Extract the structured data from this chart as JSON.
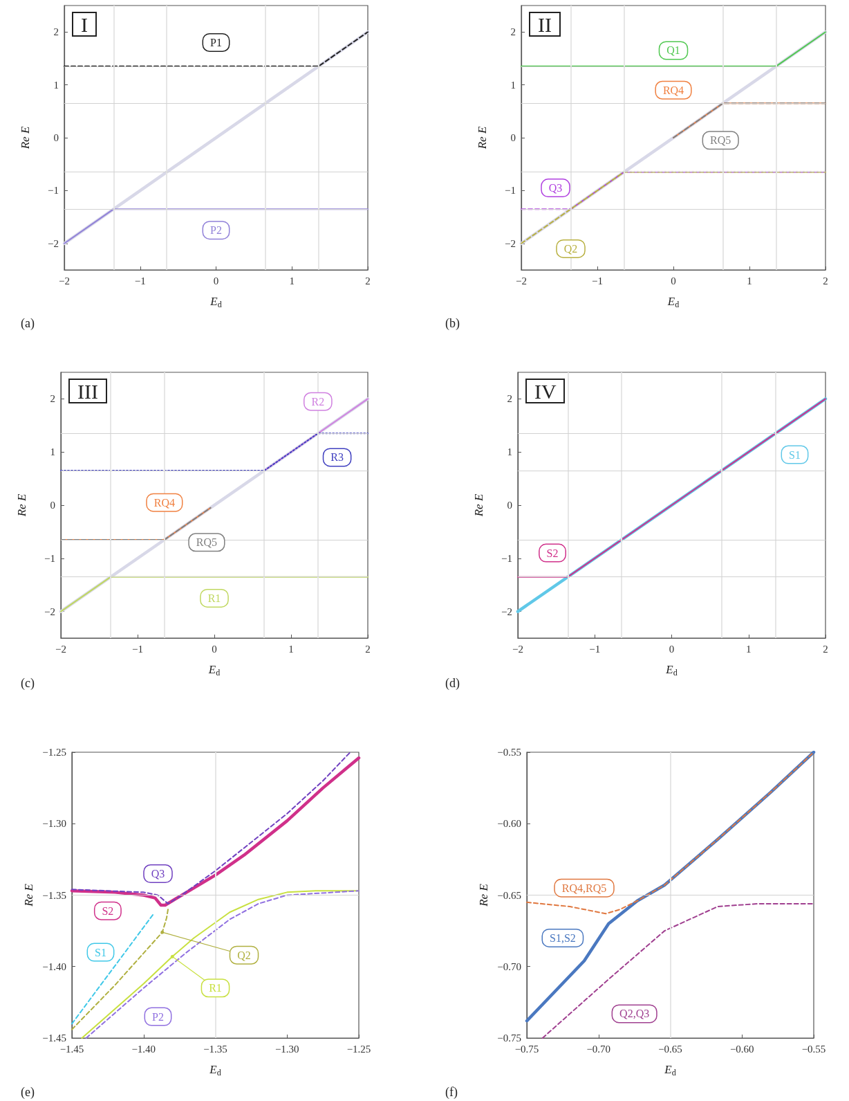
{
  "chart_data": [
    {
      "type": "line",
      "title": "I",
      "xlabel": "E$_{d}$",
      "ylabel": "Re E",
      "annotations": [
        "(a)"
      ],
      "marker": "none",
      "xlim": [
        -2,
        2
      ],
      "ylim": [
        -2.5,
        2.5
      ],
      "xticks": [
        {
          "value": -2,
          "label": "−2"
        },
        {
          "value": -1,
          "label": "−1"
        },
        0,
        1,
        2
      ],
      "yticks": [
        {
          "value": -2,
          "label": "−2"
        },
        {
          "value": -1,
          "label": "−1"
        },
        0,
        1,
        2
      ],
      "ref_lines": [
        {
          "axis": "x",
          "value": -1.35,
          "color": "#e6e6e6"
        },
        {
          "axis": "x",
          "value": -0.65,
          "color": "#e6e6e6"
        },
        {
          "axis": "x",
          "value": 0.65,
          "color": "#e6e6e6"
        },
        {
          "axis": "x",
          "value": 1.35,
          "color": "#e6e6e6"
        },
        {
          "axis": "y",
          "value": -1.35,
          "color": "#d2d2d2"
        },
        {
          "axis": "y",
          "value": -0.65,
          "color": "#d2d2d2"
        },
        {
          "axis": "y",
          "value": 0.65,
          "color": "#d2d2d2"
        },
        {
          "axis": "y",
          "value": 1.35,
          "color": "#d2d2d2"
        }
      ],
      "series": [
        {
          "color": "#d8d8e8",
          "x": [
            -2,
            2
          ],
          "values": [
            -2,
            2
          ]
        },
        {
          "name": "P1",
          "color": "#222222",
          "line_style": "dashed",
          "x": [
            -2,
            1.35,
            2
          ],
          "values": [
            1.35,
            1.35,
            2
          ]
        },
        {
          "name": "P2",
          "color": "#9080d8",
          "x": [
            -2,
            -1.35,
            2
          ],
          "values": [
            -2,
            -1.35,
            -1.35
          ]
        }
      ]
    },
    {
      "type": "line",
      "title": "II",
      "xlabel": "E$_{d}$",
      "ylabel": "Re E",
      "annotations": [
        "(b)"
      ],
      "marker": "none",
      "xlim": [
        -2,
        2
      ],
      "ylim": [
        -2.5,
        2.5
      ],
      "xticks": [
        {
          "value": -2,
          "label": "−2"
        },
        {
          "value": -1,
          "label": "−1"
        },
        0,
        1,
        2
      ],
      "yticks": [
        {
          "value": -2,
          "label": "−2"
        },
        {
          "value": -1,
          "label": "−1"
        },
        0,
        1,
        2
      ],
      "ref_lines": [
        {
          "axis": "x",
          "value": -1.35,
          "color": "#e6e6e6"
        },
        {
          "axis": "x",
          "value": -0.65,
          "color": "#e6e6e6"
        },
        {
          "axis": "x",
          "value": 0.65,
          "color": "#e6e6e6"
        },
        {
          "axis": "x",
          "value": 1.35,
          "color": "#e6e6e6"
        },
        {
          "axis": "y",
          "value": -1.35,
          "color": "#d2d2d2"
        },
        {
          "axis": "y",
          "value": -0.65,
          "color": "#d2d2d2"
        },
        {
          "axis": "y",
          "value": 0.65,
          "color": "#d2d2d2"
        },
        {
          "axis": "y",
          "value": 1.35,
          "color": "#d2d2d2"
        }
      ],
      "series": [
        {
          "color": "#d8d8e8",
          "x": [
            -2,
            2
          ],
          "values": [
            -2,
            2
          ]
        },
        {
          "name": "Q1",
          "color": "#50c850",
          "x": [
            -2,
            1.35,
            2
          ],
          "values": [
            1.35,
            1.35,
            2
          ]
        },
        {
          "name": "RQ4",
          "color": "#f08040",
          "x": [
            0,
            0.65,
            2
          ],
          "values": [
            0,
            0.65,
            0.65
          ]
        },
        {
          "name": "RQ5",
          "color": "#808080",
          "line_style": "dashed",
          "x": [
            0,
            0.65,
            2
          ],
          "values": [
            0,
            0.65,
            0.65
          ]
        },
        {
          "name": "Q3",
          "color": "#b040e0",
          "line_style": "dashed",
          "x": [
            -2,
            -1.35,
            -0.65,
            2
          ],
          "values": [
            -1.35,
            -1.35,
            -0.65,
            -0.65
          ]
        },
        {
          "name": "Q2",
          "color": "#b8b040",
          "line_style": "dashed",
          "x": [
            -2,
            -0.65,
            2
          ],
          "values": [
            -2,
            -0.65,
            -0.65
          ]
        }
      ]
    },
    {
      "type": "line",
      "title": "III",
      "xlabel": "E$_{d}$",
      "ylabel": "Re E",
      "annotations": [
        "(c)"
      ],
      "marker": "none",
      "xlim": [
        -2,
        2
      ],
      "ylim": [
        -2.5,
        2.5
      ],
      "xticks": [
        {
          "value": -2,
          "label": "−2"
        },
        {
          "value": -1,
          "label": "−1"
        },
        0,
        1,
        2
      ],
      "yticks": [
        {
          "value": -2,
          "label": "−2"
        },
        {
          "value": -1,
          "label": "−1"
        },
        0,
        1,
        2
      ],
      "ref_lines": [
        {
          "axis": "x",
          "value": -1.35,
          "color": "#e6e6e6"
        },
        {
          "axis": "x",
          "value": -0.65,
          "color": "#e6e6e6"
        },
        {
          "axis": "x",
          "value": 0.65,
          "color": "#e6e6e6"
        },
        {
          "axis": "x",
          "value": 1.35,
          "color": "#e6e6e6"
        },
        {
          "axis": "y",
          "value": -1.35,
          "color": "#d2d2d2"
        },
        {
          "axis": "y",
          "value": -0.65,
          "color": "#d2d2d2"
        },
        {
          "axis": "y",
          "value": 0.65,
          "color": "#d2d2d2"
        },
        {
          "axis": "y",
          "value": 1.35,
          "color": "#d2d2d2"
        }
      ],
      "series": [
        {
          "color": "#d8d8e8",
          "x": [
            -2,
            2
          ],
          "values": [
            -2,
            2
          ]
        },
        {
          "name": "R2",
          "color": "#d080e0",
          "x": [
            0.65,
            2
          ],
          "values": [
            0.65,
            2
          ]
        },
        {
          "name": "R3",
          "color": "#4040c0",
          "line_style": "dotted",
          "x": [
            -2,
            0.65,
            1.35,
            2
          ],
          "values": [
            0.65,
            0.65,
            1.35,
            1.35
          ]
        },
        {
          "name": "RQ4",
          "color": "#f08040",
          "x": [
            -2,
            -0.65,
            -0.05
          ],
          "values": [
            -0.65,
            -0.65,
            -0.05
          ]
        },
        {
          "name": "RQ5",
          "color": "#808080",
          "line_style": "dashed",
          "x": [
            -2,
            -0.65,
            -0.05
          ],
          "values": [
            -0.65,
            -0.65,
            -0.05
          ]
        },
        {
          "name": "R1",
          "color": "#c0d860",
          "x": [
            -2,
            -1.35,
            2
          ],
          "values": [
            -2,
            -1.35,
            -1.35
          ]
        }
      ]
    },
    {
      "type": "line",
      "title": "IV",
      "xlabel": "E$_{d}$",
      "ylabel": "Re E",
      "annotations": [
        "(d)"
      ],
      "marker": "none",
      "xlim": [
        -2,
        2
      ],
      "ylim": [
        -2.5,
        2.5
      ],
      "xticks": [
        {
          "value": -2,
          "label": "−2"
        },
        {
          "value": -1,
          "label": "−1"
        },
        0,
        1,
        2
      ],
      "yticks": [
        {
          "value": -2,
          "label": "−2"
        },
        {
          "value": -1,
          "label": "−1"
        },
        0,
        1,
        2
      ],
      "ref_lines": [
        {
          "axis": "x",
          "value": -1.35,
          "color": "#e6e6e6"
        },
        {
          "axis": "x",
          "value": -0.65,
          "color": "#e6e6e6"
        },
        {
          "axis": "x",
          "value": 0.65,
          "color": "#e6e6e6"
        },
        {
          "axis": "x",
          "value": 1.35,
          "color": "#e6e6e6"
        },
        {
          "axis": "y",
          "value": -1.35,
          "color": "#d2d2d2"
        },
        {
          "axis": "y",
          "value": -0.65,
          "color": "#d2d2d2"
        },
        {
          "axis": "y",
          "value": 0.65,
          "color": "#d2d2d2"
        },
        {
          "axis": "y",
          "value": 1.35,
          "color": "#d2d2d2"
        }
      ],
      "series": [
        {
          "name": "S1",
          "color": "#60c8e8",
          "x": [
            -2,
            2
          ],
          "values": [
            -2,
            2
          ]
        },
        {
          "name": "S2",
          "color": "#d0308a",
          "x": [
            -2,
            -1.35,
            2
          ],
          "values": [
            -1.35,
            -1.35,
            2
          ]
        }
      ]
    },
    {
      "type": "line",
      "xlabel": "E$_{d}$",
      "ylabel": "Re E",
      "annotations": [
        "(e)"
      ],
      "marker": "none",
      "xlim": [
        -1.45,
        -1.25
      ],
      "ylim": [
        -1.45,
        -1.25
      ],
      "xticks": [
        {
          "value": -1.45,
          "label": "−1.45"
        },
        {
          "value": -1.4,
          "label": "−1.40"
        },
        {
          "value": -1.35,
          "label": "−1.35"
        },
        {
          "value": -1.3,
          "label": "−1.30"
        },
        {
          "value": -1.25,
          "label": "−1.25"
        }
      ],
      "yticks": [
        {
          "value": -1.45,
          "label": "−1.45"
        },
        {
          "value": -1.4,
          "label": "−1.40"
        },
        {
          "value": -1.35,
          "label": "−1.35"
        },
        {
          "value": -1.3,
          "label": "−1.30"
        },
        {
          "value": -1.25,
          "label": "−1.25"
        }
      ],
      "ref_lines": [
        {
          "axis": "x",
          "value": -1.35,
          "color": "#e6e6e6"
        },
        {
          "axis": "y",
          "value": -1.35,
          "color": "#d2d2d2"
        }
      ],
      "series": [
        {
          "name": "S2",
          "color": "#d0308a",
          "x": [
            -1.45,
            -1.42,
            -1.4,
            -1.392,
            -1.388,
            -1.385,
            -1.38,
            -1.37,
            -1.35,
            -1.33,
            -1.3,
            -1.275,
            -1.25
          ],
          "values": [
            -1.347,
            -1.348,
            -1.35,
            -1.352,
            -1.357,
            -1.357,
            -1.354,
            -1.348,
            -1.336,
            -1.322,
            -1.298,
            -1.275,
            -1.254
          ]
        },
        {
          "name": "Q3",
          "color": "#7040c0",
          "line_style": "dashed",
          "x": [
            -1.45,
            -1.4,
            -1.39,
            -1.383,
            -1.375,
            -1.35,
            -1.3,
            -1.275,
            -1.256
          ],
          "values": [
            -1.346,
            -1.348,
            -1.35,
            -1.356,
            -1.351,
            -1.333,
            -1.293,
            -1.27,
            -1.25
          ]
        },
        {
          "name": "S1",
          "color": "#40c8e8",
          "line_style": "dashed",
          "x": [
            -1.45,
            -1.393
          ],
          "values": [
            -1.44,
            -1.363
          ]
        },
        {
          "name": "Q2",
          "color": "#b0b040",
          "line_style": "dashed",
          "x": [
            -1.45,
            -1.42,
            -1.387,
            -1.384,
            -1.383
          ],
          "values": [
            -1.444,
            -1.413,
            -1.376,
            -1.366,
            -1.36
          ]
        },
        {
          "name": "R1",
          "color": "#c8e040",
          "x": [
            -1.443,
            -1.4,
            -1.38,
            -1.365,
            -1.34,
            -1.32,
            -1.3,
            -1.28,
            -1.25
          ],
          "values": [
            -1.45,
            -1.412,
            -1.393,
            -1.38,
            -1.362,
            -1.353,
            -1.348,
            -1.347,
            -1.347
          ]
        },
        {
          "name": "P2",
          "color": "#9070e0",
          "line_style": "dashed",
          "x": [
            -1.44,
            -1.4,
            -1.37,
            -1.34,
            -1.32,
            -1.3,
            -1.25
          ],
          "values": [
            -1.45,
            -1.415,
            -1.39,
            -1.367,
            -1.356,
            -1.35,
            -1.347
          ]
        }
      ]
    },
    {
      "type": "line",
      "xlabel": "E$_{d}$",
      "ylabel": "Re E",
      "annotations": [
        "(f)"
      ],
      "marker": "none",
      "xlim": [
        -0.75,
        -0.55
      ],
      "ylim": [
        -0.75,
        -0.55
      ],
      "xticks": [
        {
          "value": -0.75,
          "label": "−0.75"
        },
        {
          "value": -0.7,
          "label": "−0.70"
        },
        {
          "value": -0.65,
          "label": "−0.65"
        },
        {
          "value": -0.6,
          "label": "−0.60"
        },
        {
          "value": -0.55,
          "label": "−0.55"
        }
      ],
      "yticks": [
        {
          "value": -0.75,
          "label": "−0.75"
        },
        {
          "value": -0.7,
          "label": "−0.70"
        },
        {
          "value": -0.65,
          "label": "−0.65"
        },
        {
          "value": -0.6,
          "label": "−0.60"
        },
        {
          "value": -0.55,
          "label": "−0.55"
        }
      ],
      "ref_lines": [
        {
          "axis": "x",
          "value": -0.65,
          "color": "#e6e6e6"
        },
        {
          "axis": "y",
          "value": -0.65,
          "color": "#d2d2d2"
        }
      ],
      "series": [
        {
          "name": "S1,S2",
          "color": "#4a78c0",
          "x": [
            -0.75,
            -0.71,
            -0.693,
            -0.673,
            -0.654,
            -0.617,
            -0.58,
            -0.55
          ],
          "values": [
            -0.738,
            -0.696,
            -0.67,
            -0.654,
            -0.643,
            -0.611,
            -0.578,
            -0.55
          ]
        },
        {
          "name": "RQ4,RQ5",
          "color": "#e07840",
          "line_style": "dashed",
          "x": [
            -0.75,
            -0.72,
            -0.695,
            -0.685,
            -0.673,
            -0.654,
            -0.617,
            -0.58,
            -0.55
          ],
          "values": [
            -0.655,
            -0.658,
            -0.663,
            -0.66,
            -0.654,
            -0.643,
            -0.611,
            -0.578,
            -0.55
          ]
        },
        {
          "name": "Q2,Q3",
          "color": "#a04090",
          "line_style": "dashed",
          "x": [
            -0.739,
            -0.692,
            -0.654,
            -0.617,
            -0.589,
            -0.55
          ],
          "values": [
            -0.75,
            -0.708,
            -0.675,
            -0.658,
            -0.656,
            -0.656
          ]
        }
      ]
    }
  ]
}
